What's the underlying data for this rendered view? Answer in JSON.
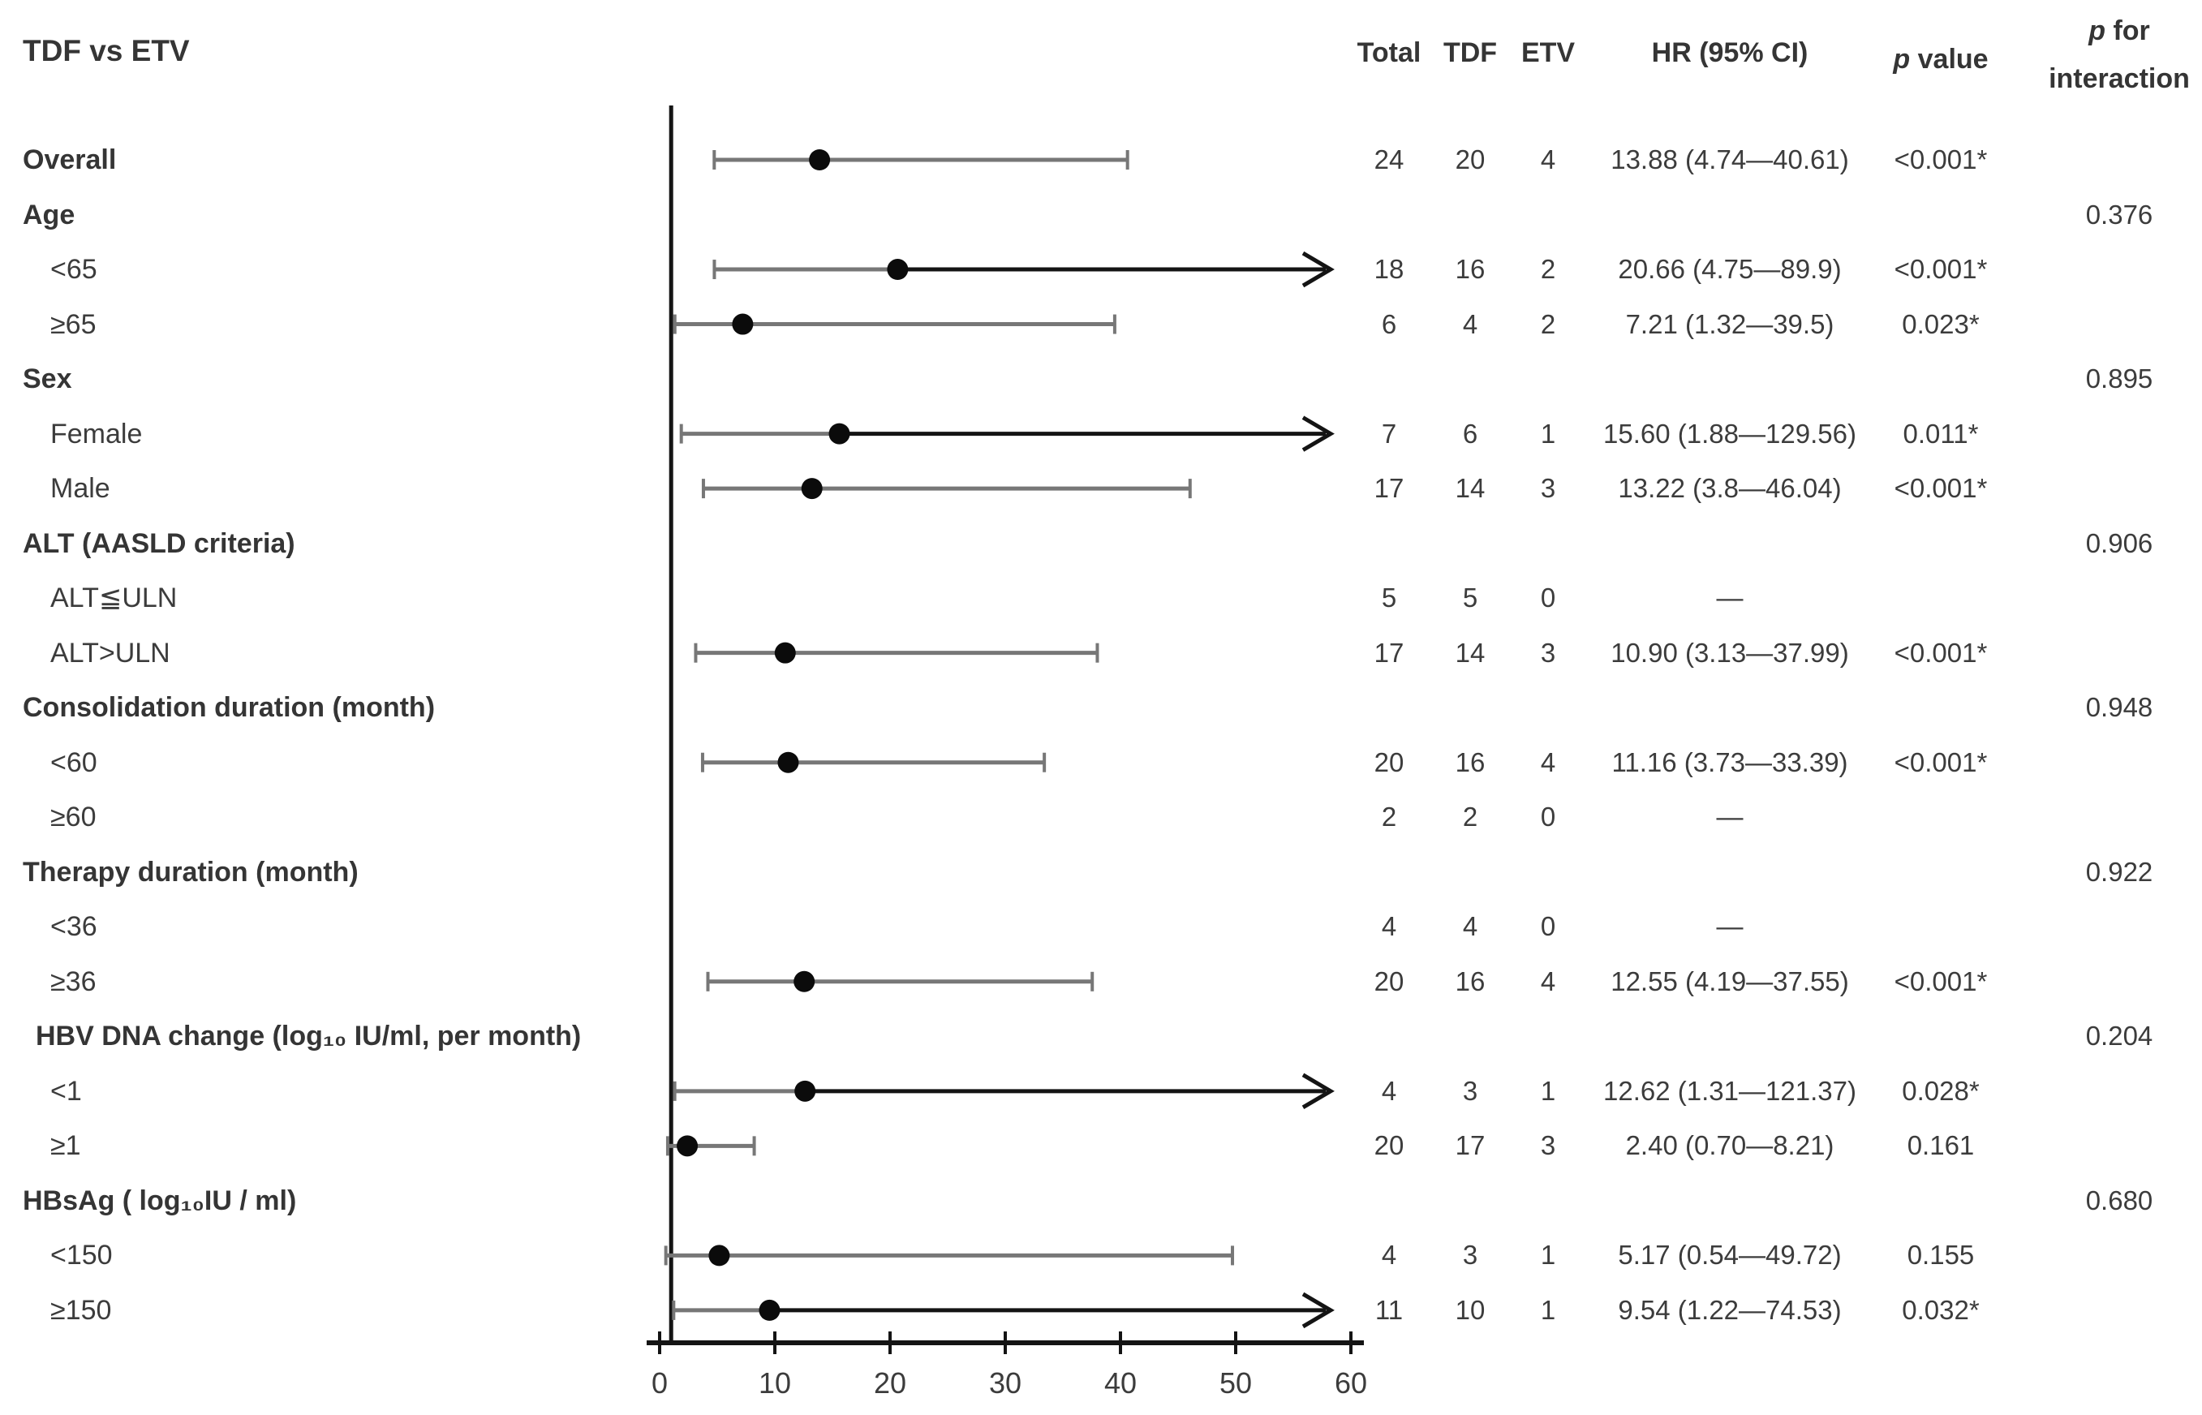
{
  "title": "TDF vs ETV",
  "headers": {
    "total": "Total",
    "tdf": "TDF",
    "etv": "ETV",
    "hr": "HR (95% CI)",
    "p_value": {
      "p": "p",
      "rest": "value"
    },
    "p_interaction": {
      "p": "p",
      "rest1": "for",
      "rest2": "interaction"
    }
  },
  "chart_data": {
    "type": "scatter",
    "subtype": "forest-plot",
    "title": "TDF vs ETV",
    "xlabel": "",
    "ylabel": "",
    "xlim": [
      0,
      60
    ],
    "xticks": [
      0,
      10,
      20,
      30,
      40,
      50,
      60
    ],
    "reference_line_x": 1,
    "grid": false,
    "legend": "none",
    "arrow_note": "confidence intervals extending beyond 60 are drawn as right arrows",
    "rows": [
      {
        "label": "Overall",
        "indent": 0,
        "bold": true,
        "total": "24",
        "tdf": "20",
        "etv": "4",
        "hr_ci": "13.88 (4.74—40.61)",
        "p": "<0.001*",
        "p_interaction": "",
        "est": 13.88,
        "lo": 4.74,
        "hi": 40.61
      },
      {
        "label": "Age",
        "indent": 0,
        "bold": true,
        "total": "",
        "tdf": "",
        "etv": "",
        "hr_ci": "",
        "p": "",
        "p_interaction": "0.376",
        "est": null,
        "lo": null,
        "hi": null
      },
      {
        "label": "<65",
        "indent": 1,
        "bold": false,
        "total": "18",
        "tdf": "16",
        "etv": "2",
        "hr_ci": "20.66 (4.75—89.9)",
        "p": "<0.001*",
        "p_interaction": "",
        "est": 20.66,
        "lo": 4.75,
        "hi": 89.9
      },
      {
        "label": "≥65",
        "indent": 1,
        "bold": false,
        "total": "6",
        "tdf": "4",
        "etv": "2",
        "hr_ci": "7.21 (1.32—39.5)",
        "p": "0.023*",
        "p_interaction": "",
        "est": 7.21,
        "lo": 1.32,
        "hi": 39.5
      },
      {
        "label": "Sex",
        "indent": 0,
        "bold": true,
        "total": "",
        "tdf": "",
        "etv": "",
        "hr_ci": "",
        "p": "",
        "p_interaction": "0.895",
        "est": null,
        "lo": null,
        "hi": null
      },
      {
        "label": "Female",
        "indent": 1,
        "bold": false,
        "total": "7",
        "tdf": "6",
        "etv": "1",
        "hr_ci": "15.60 (1.88—129.56)",
        "p": "0.011*",
        "p_interaction": "",
        "est": 15.6,
        "lo": 1.88,
        "hi": 129.56
      },
      {
        "label": "Male",
        "indent": 1,
        "bold": false,
        "total": "17",
        "tdf": "14",
        "etv": "3",
        "hr_ci": "13.22 (3.8—46.04)",
        "p": "<0.001*",
        "p_interaction": "",
        "est": 13.22,
        "lo": 3.8,
        "hi": 46.04
      },
      {
        "label": "ALT (AASLD criteria)",
        "indent": 0,
        "bold": true,
        "total": "",
        "tdf": "",
        "etv": "",
        "hr_ci": "",
        "p": "",
        "p_interaction": "0.906",
        "est": null,
        "lo": null,
        "hi": null
      },
      {
        "label": "ALT≦ULN",
        "indent": 1,
        "bold": false,
        "total": "5",
        "tdf": "5",
        "etv": "0",
        "hr_ci": "—",
        "p": "",
        "p_interaction": "",
        "est": null,
        "lo": null,
        "hi": null
      },
      {
        "label": "ALT>ULN",
        "indent": 1,
        "bold": false,
        "total": "17",
        "tdf": "14",
        "etv": "3",
        "hr_ci": "10.90 (3.13—37.99)",
        "p": "<0.001*",
        "p_interaction": "",
        "est": 10.9,
        "lo": 3.13,
        "hi": 37.99
      },
      {
        "label": "Consolidation duration (month)",
        "indent": 0,
        "bold": true,
        "total": "",
        "tdf": "",
        "etv": "",
        "hr_ci": "",
        "p": "",
        "p_interaction": "0.948",
        "est": null,
        "lo": null,
        "hi": null
      },
      {
        "label": "<60",
        "indent": 1,
        "bold": false,
        "total": "20",
        "tdf": "16",
        "etv": "4",
        "hr_ci": "11.16 (3.73—33.39)",
        "p": "<0.001*",
        "p_interaction": "",
        "est": 11.16,
        "lo": 3.73,
        "hi": 33.39
      },
      {
        "label": "≥60",
        "indent": 1,
        "bold": false,
        "total": "2",
        "tdf": "2",
        "etv": "0",
        "hr_ci": "—",
        "p": "",
        "p_interaction": "",
        "est": null,
        "lo": null,
        "hi": null
      },
      {
        "label": "Therapy duration (month)",
        "indent": 0,
        "bold": true,
        "total": "",
        "tdf": "",
        "etv": "",
        "hr_ci": "",
        "p": "",
        "p_interaction": "0.922",
        "est": null,
        "lo": null,
        "hi": null
      },
      {
        "label": "<36",
        "indent": 1,
        "bold": false,
        "total": "4",
        "tdf": "4",
        "etv": "0",
        "hr_ci": "—",
        "p": "",
        "p_interaction": "",
        "est": null,
        "lo": null,
        "hi": null
      },
      {
        "label": "≥36",
        "indent": 1,
        "bold": false,
        "total": "20",
        "tdf": "16",
        "etv": "4",
        "hr_ci": "12.55 (4.19—37.55)",
        "p": "<0.001*",
        "p_interaction": "",
        "est": 12.55,
        "lo": 4.19,
        "hi": 37.55
      },
      {
        "label": "HBV DNA change  (log₁₀ IU/ml, per month)",
        "indent": 0.5,
        "bold": true,
        "total": "",
        "tdf": "",
        "etv": "",
        "hr_ci": "",
        "p": "",
        "p_interaction": "0.204",
        "est": null,
        "lo": null,
        "hi": null
      },
      {
        "label": "<1",
        "indent": 1,
        "bold": false,
        "total": "4",
        "tdf": "3",
        "etv": "1",
        "hr_ci": "12.62 (1.31—121.37)",
        "p": "0.028*",
        "p_interaction": "",
        "est": 12.62,
        "lo": 1.31,
        "hi": 121.37
      },
      {
        "label": "≥1",
        "indent": 1,
        "bold": false,
        "total": "20",
        "tdf": "17",
        "etv": "3",
        "hr_ci": "2.40 (0.70—8.21)",
        "p": "0.161",
        "p_interaction": "",
        "est": 2.4,
        "lo": 0.7,
        "hi": 8.21
      },
      {
        "label": "HBsAg ( log₁₀IU / ml)",
        "indent": 0,
        "bold": true,
        "total": "",
        "tdf": "",
        "etv": "",
        "hr_ci": "",
        "p": "",
        "p_interaction": "0.680",
        "est": null,
        "lo": null,
        "hi": null
      },
      {
        "label": "<150",
        "indent": 1,
        "bold": false,
        "total": "4",
        "tdf": "3",
        "etv": "1",
        "hr_ci": "5.17 (0.54—49.72)",
        "p": "0.155",
        "p_interaction": "",
        "est": 5.17,
        "lo": 0.54,
        "hi": 49.72
      },
      {
        "label": "≥150",
        "indent": 1,
        "bold": false,
        "total": "11",
        "tdf": "10",
        "etv": "1",
        "hr_ci": "9.54 (1.22—74.53)",
        "p": "0.032*",
        "p_interaction": "",
        "est": 9.54,
        "lo": 1.22,
        "hi": 74.53
      }
    ],
    "colors": {
      "ci_line": "#777777",
      "point": "#0b0b0b",
      "arrow": "#141414",
      "axis": "#141414",
      "text": "#3a3a3a"
    }
  }
}
